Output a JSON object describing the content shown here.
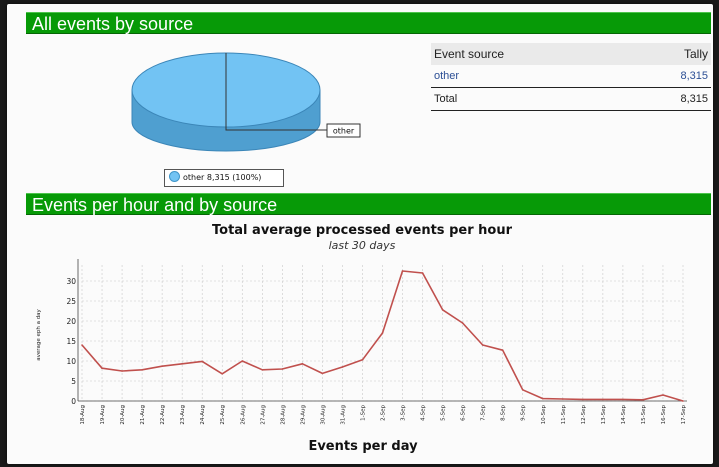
{
  "section1": {
    "title": "All events by source"
  },
  "section2": {
    "title": "Events per hour and by source"
  },
  "pie": {
    "callout_label": "other",
    "legend_text": "other 8,315 (100%)",
    "slice_color": "#72c3f3"
  },
  "source_table": {
    "headers": [
      "Event source",
      "Tally"
    ],
    "rows": [
      {
        "source": "other",
        "tally": "8,315"
      }
    ],
    "total": {
      "label": "Total",
      "tally": "8,315"
    }
  },
  "colors": {
    "section_bar": "#079a07",
    "line": "#c0504d",
    "link": "#2c4f95"
  },
  "next_chart_title": "Events per day",
  "chart_data": {
    "type": "line",
    "title": "Total average processed events per hour",
    "subtitle": "last 30 days",
    "ylabel": "average eph a day",
    "xlabel": "",
    "ylim": [
      0,
      34
    ],
    "yticks": [
      0,
      5,
      10,
      15,
      20,
      25,
      30
    ],
    "grid": true,
    "categories": [
      "18-Aug",
      "19-Aug",
      "20-Aug",
      "21-Aug",
      "22-Aug",
      "23-Aug",
      "24-Aug",
      "25-Aug",
      "26-Aug",
      "27-Aug",
      "28-Aug",
      "29-Aug",
      "30-Aug",
      "31-Aug",
      "1-Sep",
      "2-Sep",
      "3-Sep",
      "4-Sep",
      "5-Sep",
      "6-Sep",
      "7-Sep",
      "8-Sep",
      "9-Sep",
      "10-Sep",
      "11-Sep",
      "12-Sep",
      "13-Sep",
      "14-Sep",
      "15-Sep",
      "16-Sep",
      "17-Sep"
    ],
    "series": [
      {
        "values": [
          14,
          8.2,
          7.5,
          7.8,
          8.7,
          9.3,
          9.9,
          6.8,
          10,
          7.8,
          8,
          9.3,
          6.9,
          8.5,
          10.3,
          17,
          32.5,
          32,
          22.8,
          19.5,
          14,
          12.7,
          2.8,
          0.6,
          0.5,
          0.4,
          0.4,
          0.4,
          0.3,
          1.5,
          0
        ]
      }
    ]
  }
}
